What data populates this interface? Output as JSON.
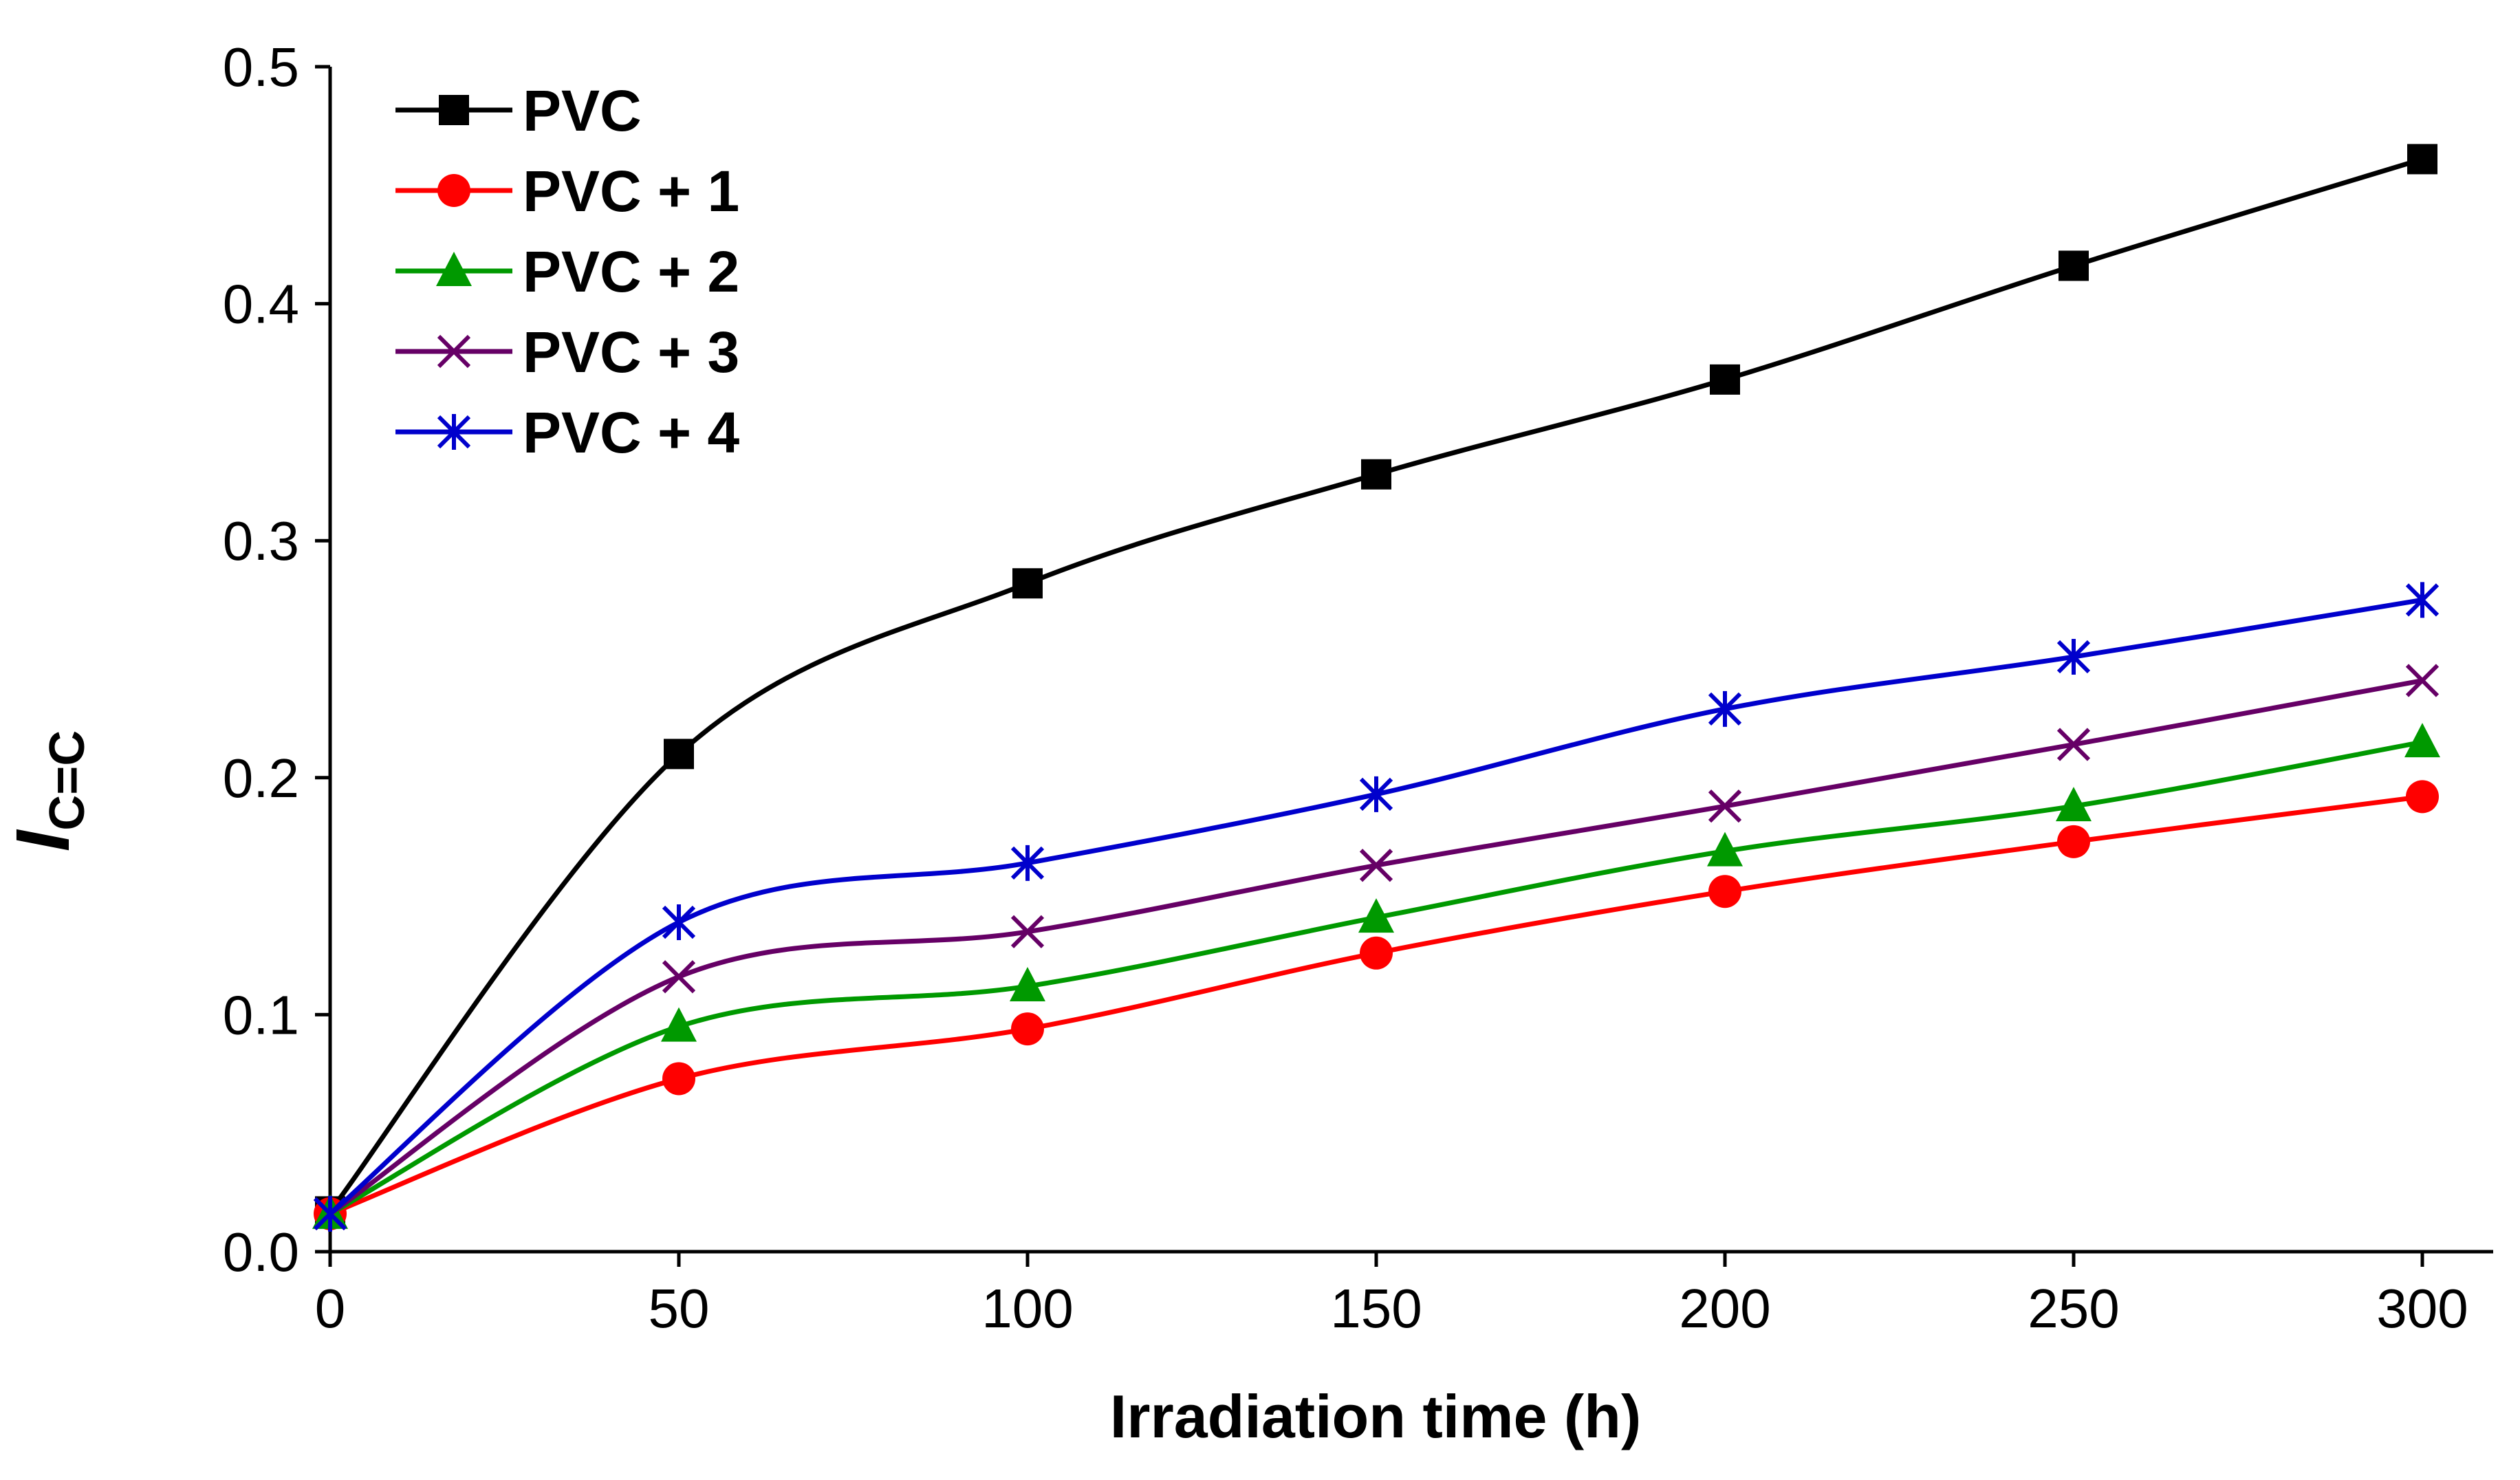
{
  "chart_data": {
    "type": "line",
    "title": "",
    "xlabel": "Irradiation time (h)",
    "ylabel_main": "I",
    "ylabel_sub": "C=C",
    "xlim": [
      0,
      300
    ],
    "ylim": [
      0,
      0.5
    ],
    "x_ticks": [
      "0",
      "50",
      "100",
      "150",
      "200",
      "250",
      "300"
    ],
    "y_ticks": [
      "0.0",
      "0.1",
      "0.2",
      "0.3",
      "0.4",
      "0.5"
    ],
    "grid": false,
    "legend_placement": "top-left",
    "x": [
      0,
      50,
      100,
      150,
      200,
      250,
      300
    ],
    "series": [
      {
        "name": "PVC",
        "color": "#000000",
        "marker": "square",
        "values": [
          0.017,
          0.21,
          0.282,
          0.328,
          0.368,
          0.416,
          0.461
        ]
      },
      {
        "name": "PVC + 1",
        "color": "#ff0000",
        "marker": "circle",
        "values": [
          0.016,
          0.073,
          0.094,
          0.126,
          0.152,
          0.173,
          0.192
        ]
      },
      {
        "name": "PVC + 2",
        "color": "#009900",
        "marker": "triangle",
        "values": [
          0.016,
          0.095,
          0.112,
          0.141,
          0.169,
          0.188,
          0.215
        ]
      },
      {
        "name": "PVC + 3",
        "color": "#660066",
        "marker": "x",
        "values": [
          0.016,
          0.116,
          0.135,
          0.163,
          0.188,
          0.214,
          0.241
        ]
      },
      {
        "name": "PVC + 4",
        "color": "#0000cc",
        "marker": "asterisk",
        "values": [
          0.016,
          0.139,
          0.164,
          0.193,
          0.229,
          0.251,
          0.275
        ]
      }
    ]
  }
}
